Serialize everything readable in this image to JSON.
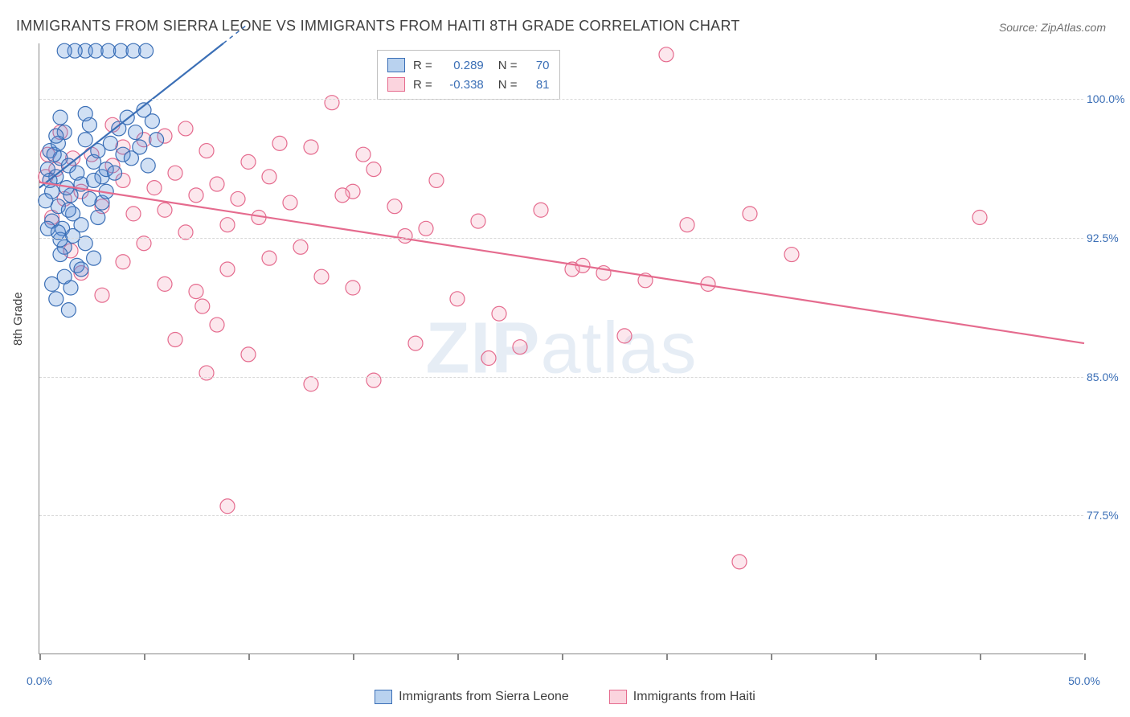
{
  "title": "IMMIGRANTS FROM SIERRA LEONE VS IMMIGRANTS FROM HAITI 8TH GRADE CORRELATION CHART",
  "source": "Source: ZipAtlas.com",
  "watermark_bold": "ZIP",
  "watermark_rest": "atlas",
  "yaxis_title": "8th Grade",
  "chart": {
    "type": "scatter-with-regression",
    "xlim": [
      0,
      50
    ],
    "ylim": [
      70,
      103
    ],
    "xticks": [
      0,
      5,
      10,
      15,
      20,
      25,
      30,
      35,
      40,
      45,
      50
    ],
    "xtick_labels": {
      "0": "0.0%",
      "50": "50.0%"
    },
    "yticks": [
      77.5,
      85.0,
      92.5,
      100.0
    ],
    "ytick_labels": [
      "77.5%",
      "85.0%",
      "92.5%",
      "100.0%"
    ],
    "background_color": "#ffffff",
    "grid_color": "#d8d8d8",
    "axis_color": "#888888",
    "tick_label_color": "#3b6fb6",
    "marker_radius": 9,
    "marker_stroke_width": 1.2,
    "marker_fill_opacity": 0.28,
    "line_width": 2.2,
    "series": [
      {
        "name": "Immigrants from Sierra Leone",
        "color": "#5a8fd6",
        "stroke": "#3b6fb6",
        "R": "0.289",
        "N": "70",
        "trend": {
          "x1": 0,
          "y1": 95.2,
          "x2": 8.8,
          "y2": 103,
          "dash_extension": true
        },
        "points": [
          [
            0.4,
            96.2
          ],
          [
            0.6,
            95.0
          ],
          [
            0.5,
            97.2
          ],
          [
            0.8,
            95.8
          ],
          [
            0.9,
            94.2
          ],
          [
            1.0,
            96.8
          ],
          [
            1.1,
            93.0
          ],
          [
            1.2,
            98.2
          ],
          [
            0.3,
            94.5
          ],
          [
            0.7,
            97.0
          ],
          [
            1.4,
            96.4
          ],
          [
            1.5,
            94.8
          ],
          [
            1.0,
            99.0
          ],
          [
            1.3,
            95.2
          ],
          [
            0.6,
            93.4
          ],
          [
            0.9,
            97.6
          ],
          [
            1.8,
            96.0
          ],
          [
            2.0,
            95.4
          ],
          [
            2.2,
            97.8
          ],
          [
            1.6,
            93.8
          ],
          [
            1.2,
            92.0
          ],
          [
            0.5,
            95.6
          ],
          [
            2.4,
            98.6
          ],
          [
            2.6,
            96.6
          ],
          [
            1.0,
            91.6
          ],
          [
            1.4,
            94.0
          ],
          [
            0.8,
            98.0
          ],
          [
            2.8,
            97.2
          ],
          [
            3.0,
            95.8
          ],
          [
            1.6,
            92.6
          ],
          [
            2.2,
            99.2
          ],
          [
            3.2,
            96.2
          ],
          [
            1.8,
            91.0
          ],
          [
            0.4,
            93.0
          ],
          [
            3.4,
            97.6
          ],
          [
            3.6,
            96.0
          ],
          [
            2.0,
            93.2
          ],
          [
            1.2,
            90.4
          ],
          [
            3.8,
            98.4
          ],
          [
            4.0,
            97.0
          ],
          [
            2.4,
            94.6
          ],
          [
            1.5,
            89.8
          ],
          [
            4.2,
            99.0
          ],
          [
            4.4,
            96.8
          ],
          [
            2.6,
            95.6
          ],
          [
            4.6,
            98.2
          ],
          [
            4.8,
            97.4
          ],
          [
            2.8,
            93.6
          ],
          [
            5.0,
            99.4
          ],
          [
            5.2,
            96.4
          ],
          [
            3.0,
            94.4
          ],
          [
            5.4,
            98.8
          ],
          [
            5.6,
            97.8
          ],
          [
            3.2,
            95.0
          ],
          [
            0.6,
            90.0
          ],
          [
            1.0,
            92.4
          ],
          [
            2.2,
            102.6
          ],
          [
            2.7,
            102.6
          ],
          [
            3.3,
            102.6
          ],
          [
            3.9,
            102.6
          ],
          [
            4.5,
            102.6
          ],
          [
            5.1,
            102.6
          ],
          [
            1.7,
            102.6
          ],
          [
            1.2,
            102.6
          ],
          [
            0.8,
            89.2
          ],
          [
            2.0,
            90.8
          ],
          [
            1.4,
            88.6
          ],
          [
            0.9,
            92.8
          ],
          [
            2.6,
            91.4
          ],
          [
            2.2,
            92.2
          ]
        ]
      },
      {
        "name": "Immigrants from Haiti",
        "color": "#f5a8bd",
        "stroke": "#e56b8e",
        "R": "-0.338",
        "N": "81",
        "trend": {
          "x1": 0,
          "y1": 95.5,
          "x2": 50,
          "y2": 86.8,
          "dash_extension": false
        },
        "points": [
          [
            0.3,
            95.8
          ],
          [
            0.8,
            96.2
          ],
          [
            1.2,
            94.6
          ],
          [
            1.6,
            96.8
          ],
          [
            2.0,
            95.0
          ],
          [
            2.5,
            97.0
          ],
          [
            3.0,
            94.2
          ],
          [
            3.5,
            96.4
          ],
          [
            4.0,
            95.6
          ],
          [
            4.5,
            93.8
          ],
          [
            5.0,
            97.8
          ],
          [
            5.5,
            95.2
          ],
          [
            6.0,
            94.0
          ],
          [
            6.5,
            96.0
          ],
          [
            7.0,
            98.4
          ],
          [
            7.5,
            94.8
          ],
          [
            8.0,
            97.2
          ],
          [
            8.5,
            95.4
          ],
          [
            9.0,
            93.2
          ],
          [
            9.5,
            94.6
          ],
          [
            10.0,
            96.6
          ],
          [
            11.0,
            95.8
          ],
          [
            12.0,
            94.4
          ],
          [
            13.0,
            97.4
          ],
          [
            14.0,
            99.8
          ],
          [
            15.0,
            95.0
          ],
          [
            16.0,
            96.2
          ],
          [
            2.0,
            90.6
          ],
          [
            4.0,
            91.2
          ],
          [
            6.0,
            90.0
          ],
          [
            7.5,
            89.6
          ],
          [
            9.0,
            90.8
          ],
          [
            11.0,
            91.4
          ],
          [
            13.5,
            90.4
          ],
          [
            15.0,
            89.8
          ],
          [
            17.0,
            94.2
          ],
          [
            19.0,
            95.6
          ],
          [
            21.0,
            93.4
          ],
          [
            22.0,
            88.4
          ],
          [
            24.0,
            94.0
          ],
          [
            26.0,
            91.0
          ],
          [
            27.0,
            90.6
          ],
          [
            28.0,
            87.2
          ],
          [
            21.5,
            86.0
          ],
          [
            18.0,
            86.8
          ],
          [
            13.0,
            84.6
          ],
          [
            10.0,
            86.2
          ],
          [
            8.5,
            87.8
          ],
          [
            6.5,
            87.0
          ],
          [
            16.0,
            84.8
          ],
          [
            25.5,
            90.8
          ],
          [
            23.0,
            86.6
          ],
          [
            30.0,
            102.4
          ],
          [
            32.0,
            90.0
          ],
          [
            34.0,
            93.8
          ],
          [
            36.0,
            91.6
          ],
          [
            31.0,
            93.2
          ],
          [
            29.0,
            90.2
          ],
          [
            33.5,
            75.0
          ],
          [
            9.0,
            78.0
          ],
          [
            7.8,
            88.8
          ],
          [
            3.0,
            89.4
          ],
          [
            1.5,
            91.8
          ],
          [
            0.6,
            93.6
          ],
          [
            5.0,
            92.2
          ],
          [
            7.0,
            92.8
          ],
          [
            10.5,
            93.6
          ],
          [
            12.5,
            92.0
          ],
          [
            17.5,
            92.6
          ],
          [
            20.0,
            89.2
          ],
          [
            45.0,
            93.6
          ],
          [
            4.0,
            97.4
          ],
          [
            15.5,
            97.0
          ],
          [
            11.5,
            97.6
          ],
          [
            6.0,
            98.0
          ],
          [
            3.5,
            98.6
          ],
          [
            1.0,
            98.2
          ],
          [
            0.4,
            97.0
          ],
          [
            18.5,
            93.0
          ],
          [
            8.0,
            85.2
          ],
          [
            14.5,
            94.8
          ]
        ]
      }
    ]
  },
  "top_legend": {
    "rows": [
      {
        "swatch_fill": "#b9d2ef",
        "swatch_stroke": "#3b6fb6",
        "r_val": "0.289",
        "n_val": "70"
      },
      {
        "swatch_fill": "#fbd4de",
        "swatch_stroke": "#e56b8e",
        "r_val": "-0.338",
        "n_val": "81"
      }
    ],
    "R_label": "R =",
    "N_label": "N ="
  },
  "bottom_legend": [
    {
      "swatch_fill": "#b9d2ef",
      "swatch_stroke": "#3b6fb6",
      "label": "Immigrants from Sierra Leone"
    },
    {
      "swatch_fill": "#fbd4de",
      "swatch_stroke": "#e56b8e",
      "label": "Immigrants from Haiti"
    }
  ]
}
